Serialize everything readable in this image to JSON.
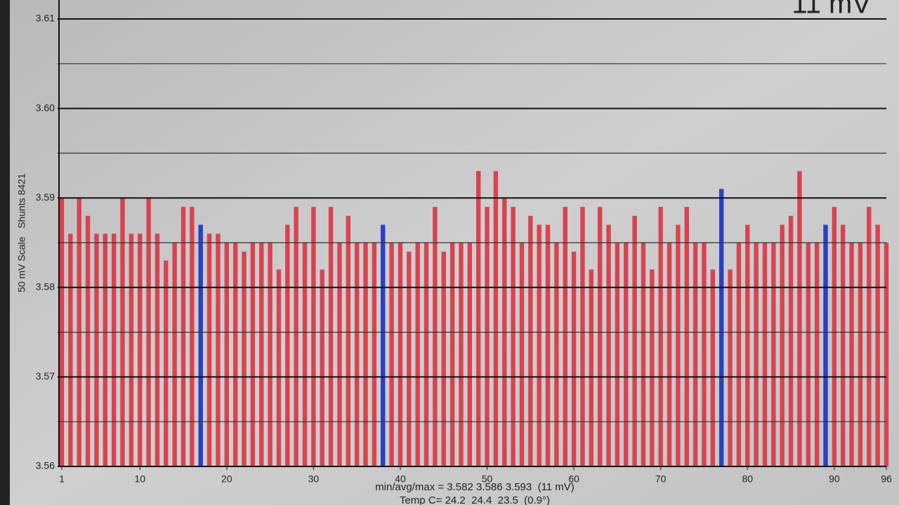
{
  "chart_data": {
    "type": "bar",
    "corner_label": "11 mV",
    "y_label": "50 mV Scale   Shunts 8421",
    "annotations": [
      "min/avg/max = 3.582 3.586 3.593  (11 mV)",
      "Temp C= 24.2  24.4  23.5  (0.9°)"
    ],
    "x": [
      1,
      2,
      3,
      4,
      5,
      6,
      7,
      8,
      9,
      10,
      11,
      12,
      13,
      14,
      15,
      16,
      17,
      18,
      19,
      20,
      21,
      22,
      23,
      24,
      25,
      26,
      27,
      28,
      29,
      30,
      31,
      32,
      33,
      34,
      35,
      36,
      37,
      38,
      39,
      40,
      41,
      42,
      43,
      44,
      45,
      46,
      47,
      48,
      49,
      50,
      51,
      52,
      53,
      54,
      55,
      56,
      57,
      58,
      59,
      60,
      61,
      62,
      63,
      64,
      65,
      66,
      67,
      68,
      69,
      70,
      71,
      72,
      73,
      74,
      75,
      76,
      77,
      78,
      79,
      80,
      81,
      82,
      83,
      84,
      85,
      86,
      87,
      88,
      89,
      90,
      91,
      92,
      93,
      94,
      95,
      96
    ],
    "values": [
      3.59,
      3.586,
      3.59,
      3.588,
      3.586,
      3.586,
      3.586,
      3.59,
      3.586,
      3.586,
      3.59,
      3.586,
      3.583,
      3.585,
      3.589,
      3.589,
      3.587,
      3.586,
      3.586,
      3.585,
      3.585,
      3.584,
      3.585,
      3.585,
      3.585,
      3.582,
      3.587,
      3.589,
      3.585,
      3.589,
      3.582,
      3.589,
      3.585,
      3.588,
      3.585,
      3.585,
      3.585,
      3.587,
      3.585,
      3.585,
      3.584,
      3.585,
      3.585,
      3.589,
      3.584,
      3.585,
      3.585,
      3.585,
      3.593,
      3.589,
      3.593,
      3.59,
      3.589,
      3.585,
      3.588,
      3.587,
      3.587,
      3.585,
      3.589,
      3.584,
      3.589,
      3.582,
      3.589,
      3.587,
      3.585,
      3.585,
      3.588,
      3.585,
      3.582,
      3.589,
      3.585,
      3.587,
      3.589,
      3.585,
      3.585,
      3.582,
      3.591,
      3.582,
      3.585,
      3.587,
      3.585,
      3.585,
      3.585,
      3.587,
      3.588,
      3.593,
      3.585,
      3.585,
      3.587,
      3.589,
      3.587,
      3.585,
      3.585,
      3.589,
      3.587,
      3.585
    ],
    "colors": [
      "#d9434f",
      "#d9434f",
      "#d9434f",
      "#d9434f",
      "#d9434f",
      "#d9434f",
      "#d9434f",
      "#d9434f",
      "#d9434f",
      "#d9434f",
      "#d9434f",
      "#d9434f",
      "#d9434f",
      "#d9434f",
      "#d9434f",
      "#d9434f",
      "#2b3fc4",
      "#d9434f",
      "#d9434f",
      "#d9434f",
      "#d9434f",
      "#d9434f",
      "#d9434f",
      "#d9434f",
      "#d9434f",
      "#d9434f",
      "#d9434f",
      "#d9434f",
      "#d9434f",
      "#d9434f",
      "#d9434f",
      "#d9434f",
      "#d9434f",
      "#d9434f",
      "#d9434f",
      "#d9434f",
      "#d9434f",
      "#2b3fc4",
      "#d9434f",
      "#d9434f",
      "#d9434f",
      "#d9434f",
      "#d9434f",
      "#d9434f",
      "#d9434f",
      "#d9434f",
      "#d9434f",
      "#d9434f",
      "#d9434f",
      "#d9434f",
      "#d9434f",
      "#d9434f",
      "#d9434f",
      "#d9434f",
      "#d9434f",
      "#d9434f",
      "#d9434f",
      "#d9434f",
      "#d9434f",
      "#d9434f",
      "#d9434f",
      "#d9434f",
      "#d9434f",
      "#d9434f",
      "#d9434f",
      "#d9434f",
      "#d9434f",
      "#d9434f",
      "#d9434f",
      "#d9434f",
      "#d9434f",
      "#d9434f",
      "#d9434f",
      "#d9434f",
      "#d9434f",
      "#d9434f",
      "#2b3fc4",
      "#d9434f",
      "#d9434f",
      "#d9434f",
      "#d9434f",
      "#d9434f",
      "#d9434f",
      "#d9434f",
      "#d9434f",
      "#d9434f",
      "#d9434f",
      "#d9434f",
      "#2b3fc4",
      "#d9434f",
      "#d9434f",
      "#d9434f",
      "#d9434f",
      "#d9434f",
      "#d9434f",
      "#d9434f"
    ],
    "xlim": [
      1,
      96
    ],
    "xticks": [
      1,
      10,
      20,
      30,
      40,
      50,
      60,
      70,
      80,
      90,
      96
    ],
    "ylim": [
      3.56,
      3.61
    ],
    "yticks": [
      {
        "value": 3.56,
        "label": "3.56"
      },
      {
        "value": 3.57,
        "label": "3.57"
      },
      {
        "value": 3.58,
        "label": "3.58"
      },
      {
        "value": 3.59,
        "label": "3.59"
      },
      {
        "value": 3.6,
        "label": "3.60"
      },
      {
        "value": 3.61,
        "label": "3.61"
      }
    ],
    "minor_yticks": [
      3.565,
      3.575,
      3.585,
      3.595,
      3.605
    ],
    "grid": true
  }
}
